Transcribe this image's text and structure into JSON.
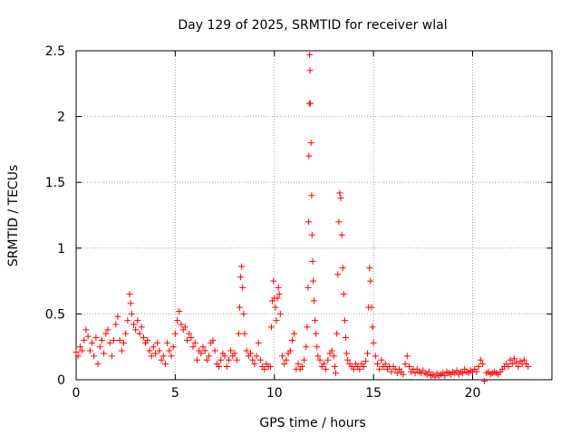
{
  "chart_data": {
    "type": "scatter",
    "title": "Day 129 of 2025, SRMTID for receiver wlal",
    "xlabel": "GPS time / hours",
    "ylabel": "SRMTID / TECUs",
    "xlim": [
      0,
      24
    ],
    "ylim": [
      0,
      2.5
    ],
    "x_ticks": [
      0,
      5,
      10,
      15,
      20
    ],
    "x_tick_labels": [
      "0",
      "5",
      "10",
      "15",
      "20"
    ],
    "y_ticks": [
      0,
      0.5,
      1,
      1.5,
      2,
      2.5
    ],
    "y_tick_labels": [
      "0",
      "0.5",
      "1",
      "1.5",
      "2",
      "2.5"
    ],
    "grid": true,
    "marker": "plus",
    "color": "#ff0000",
    "series": [
      {
        "name": "SRMTID",
        "points": [
          [
            0.0,
            0.21
          ],
          [
            0.1,
            0.18
          ],
          [
            0.2,
            0.25
          ],
          [
            0.3,
            0.22
          ],
          [
            0.4,
            0.3
          ],
          [
            0.5,
            0.38
          ],
          [
            0.6,
            0.33
          ],
          [
            0.7,
            0.22
          ],
          [
            0.8,
            0.28
          ],
          [
            0.9,
            0.18
          ],
          [
            1.0,
            0.32
          ],
          [
            1.1,
            0.12
          ],
          [
            1.2,
            0.25
          ],
          [
            1.3,
            0.3
          ],
          [
            1.4,
            0.2
          ],
          [
            1.5,
            0.35
          ],
          [
            1.6,
            0.38
          ],
          [
            1.7,
            0.28
          ],
          [
            1.8,
            0.18
          ],
          [
            1.9,
            0.3
          ],
          [
            2.0,
            0.42
          ],
          [
            2.1,
            0.48
          ],
          [
            2.2,
            0.3
          ],
          [
            2.3,
            0.22
          ],
          [
            2.4,
            0.28
          ],
          [
            2.5,
            0.35
          ],
          [
            2.6,
            0.45
          ],
          [
            2.7,
            0.65
          ],
          [
            2.75,
            0.58
          ],
          [
            2.8,
            0.5
          ],
          [
            2.9,
            0.42
          ],
          [
            3.0,
            0.38
          ],
          [
            3.1,
            0.45
          ],
          [
            3.2,
            0.35
          ],
          [
            3.3,
            0.4
          ],
          [
            3.4,
            0.32
          ],
          [
            3.5,
            0.28
          ],
          [
            3.6,
            0.3
          ],
          [
            3.7,
            0.22
          ],
          [
            3.8,
            0.18
          ],
          [
            3.9,
            0.25
          ],
          [
            4.0,
            0.2
          ],
          [
            4.1,
            0.28
          ],
          [
            4.2,
            0.22
          ],
          [
            4.3,
            0.15
          ],
          [
            4.4,
            0.18
          ],
          [
            4.5,
            0.12
          ],
          [
            4.6,
            0.28
          ],
          [
            4.7,
            0.22
          ],
          [
            4.8,
            0.18
          ],
          [
            4.9,
            0.25
          ],
          [
            5.0,
            0.35
          ],
          [
            5.1,
            0.45
          ],
          [
            5.2,
            0.52
          ],
          [
            5.3,
            0.42
          ],
          [
            5.4,
            0.38
          ],
          [
            5.5,
            0.4
          ],
          [
            5.6,
            0.3
          ],
          [
            5.7,
            0.35
          ],
          [
            5.8,
            0.32
          ],
          [
            5.9,
            0.25
          ],
          [
            6.0,
            0.28
          ],
          [
            6.1,
            0.15
          ],
          [
            6.2,
            0.22
          ],
          [
            6.3,
            0.2
          ],
          [
            6.4,
            0.25
          ],
          [
            6.5,
            0.22
          ],
          [
            6.6,
            0.15
          ],
          [
            6.7,
            0.18
          ],
          [
            6.8,
            0.28
          ],
          [
            6.9,
            0.3
          ],
          [
            7.0,
            0.22
          ],
          [
            7.1,
            0.12
          ],
          [
            7.2,
            0.1
          ],
          [
            7.3,
            0.15
          ],
          [
            7.4,
            0.2
          ],
          [
            7.5,
            0.18
          ],
          [
            7.6,
            0.1
          ],
          [
            7.7,
            0.15
          ],
          [
            7.8,
            0.22
          ],
          [
            7.9,
            0.18
          ],
          [
            8.0,
            0.2
          ],
          [
            8.1,
            0.15
          ],
          [
            8.2,
            0.35
          ],
          [
            8.25,
            0.55
          ],
          [
            8.3,
            0.78
          ],
          [
            8.35,
            0.86
          ],
          [
            8.4,
            0.7
          ],
          [
            8.45,
            0.5
          ],
          [
            8.5,
            0.35
          ],
          [
            8.6,
            0.22
          ],
          [
            8.7,
            0.18
          ],
          [
            8.8,
            0.2
          ],
          [
            8.9,
            0.15
          ],
          [
            9.0,
            0.12
          ],
          [
            9.1,
            0.18
          ],
          [
            9.2,
            0.28
          ],
          [
            9.3,
            0.15
          ],
          [
            9.4,
            0.1
          ],
          [
            9.5,
            0.08
          ],
          [
            9.6,
            0.12
          ],
          [
            9.7,
            0.1
          ],
          [
            9.8,
            0.1
          ],
          [
            9.85,
            0.4
          ],
          [
            9.9,
            0.6
          ],
          [
            9.95,
            0.75
          ],
          [
            10.0,
            0.62
          ],
          [
            10.05,
            0.55
          ],
          [
            10.1,
            0.45
          ],
          [
            10.15,
            0.62
          ],
          [
            10.2,
            0.7
          ],
          [
            10.25,
            0.65
          ],
          [
            10.3,
            0.5
          ],
          [
            10.4,
            0.18
          ],
          [
            10.5,
            0.12
          ],
          [
            10.6,
            0.15
          ],
          [
            10.7,
            0.2
          ],
          [
            10.8,
            0.22
          ],
          [
            10.9,
            0.3
          ],
          [
            11.0,
            0.35
          ],
          [
            11.1,
            0.08
          ],
          [
            11.2,
            0.12
          ],
          [
            11.3,
            0.08
          ],
          [
            11.4,
            0.1
          ],
          [
            11.5,
            0.15
          ],
          [
            11.6,
            0.25
          ],
          [
            11.65,
            0.4
          ],
          [
            11.7,
            0.7
          ],
          [
            11.72,
            1.2
          ],
          [
            11.74,
            1.7
          ],
          [
            11.76,
            2.1
          ],
          [
            11.78,
            2.47
          ],
          [
            11.8,
            2.35
          ],
          [
            11.82,
            2.1
          ],
          [
            11.85,
            1.8
          ],
          [
            11.88,
            1.4
          ],
          [
            11.9,
            1.1
          ],
          [
            11.93,
            0.9
          ],
          [
            11.96,
            0.75
          ],
          [
            12.0,
            0.6
          ],
          [
            12.05,
            0.45
          ],
          [
            12.1,
            0.35
          ],
          [
            12.15,
            0.25
          ],
          [
            12.2,
            0.18
          ],
          [
            12.3,
            0.15
          ],
          [
            12.4,
            0.1
          ],
          [
            12.5,
            0.12
          ],
          [
            12.6,
            0.08
          ],
          [
            12.7,
            0.15
          ],
          [
            12.8,
            0.2
          ],
          [
            12.9,
            0.22
          ],
          [
            13.0,
            0.18
          ],
          [
            13.05,
            0.1
          ],
          [
            13.1,
            0.05
          ],
          [
            13.15,
            0.35
          ],
          [
            13.2,
            0.8
          ],
          [
            13.25,
            1.2
          ],
          [
            13.3,
            1.42
          ],
          [
            13.35,
            1.38
          ],
          [
            13.4,
            1.1
          ],
          [
            13.45,
            0.85
          ],
          [
            13.5,
            0.65
          ],
          [
            13.55,
            0.45
          ],
          [
            13.6,
            0.32
          ],
          [
            13.65,
            0.2
          ],
          [
            13.7,
            0.15
          ],
          [
            13.8,
            0.12
          ],
          [
            13.9,
            0.1
          ],
          [
            14.0,
            0.08
          ],
          [
            14.1,
            0.12
          ],
          [
            14.2,
            0.1
          ],
          [
            14.3,
            0.08
          ],
          [
            14.4,
            0.12
          ],
          [
            14.5,
            0.1
          ],
          [
            14.6,
            0.14
          ],
          [
            14.7,
            0.2
          ],
          [
            14.75,
            0.55
          ],
          [
            14.8,
            0.85
          ],
          [
            14.85,
            0.75
          ],
          [
            14.9,
            0.55
          ],
          [
            14.95,
            0.4
          ],
          [
            15.0,
            0.28
          ],
          [
            15.1,
            0.18
          ],
          [
            15.2,
            0.12
          ],
          [
            15.3,
            0.08
          ],
          [
            15.4,
            0.15
          ],
          [
            15.5,
            0.1
          ],
          [
            15.6,
            0.12
          ],
          [
            15.7,
            0.08
          ],
          [
            15.8,
            0.1
          ],
          [
            15.9,
            0.06
          ],
          [
            16.0,
            0.1
          ],
          [
            16.1,
            0.08
          ],
          [
            16.2,
            0.05
          ],
          [
            16.3,
            0.08
          ],
          [
            16.4,
            0.06
          ],
          [
            16.5,
            0.04
          ],
          [
            16.6,
            0.12
          ],
          [
            16.7,
            0.18
          ],
          [
            16.8,
            0.1
          ],
          [
            16.9,
            0.06
          ],
          [
            17.0,
            0.08
          ],
          [
            17.1,
            0.05
          ],
          [
            17.2,
            0.08
          ],
          [
            17.3,
            0.06
          ],
          [
            17.4,
            0.05
          ],
          [
            17.5,
            0.07
          ],
          [
            17.6,
            0.05
          ],
          [
            17.7,
            0.04
          ],
          [
            17.8,
            0.06
          ],
          [
            17.9,
            0.03
          ],
          [
            18.0,
            0.04
          ],
          [
            18.1,
            0.02
          ],
          [
            18.2,
            0.05
          ],
          [
            18.3,
            0.03
          ],
          [
            18.4,
            0.04
          ],
          [
            18.5,
            0.05
          ],
          [
            18.6,
            0.03
          ],
          [
            18.7,
            0.06
          ],
          [
            18.8,
            0.05
          ],
          [
            18.9,
            0.04
          ],
          [
            19.0,
            0.06
          ],
          [
            19.1,
            0.05
          ],
          [
            19.2,
            0.07
          ],
          [
            19.3,
            0.04
          ],
          [
            19.4,
            0.06
          ],
          [
            19.5,
            0.05
          ],
          [
            19.6,
            0.08
          ],
          [
            19.7,
            0.06
          ],
          [
            19.8,
            0.05
          ],
          [
            19.9,
            0.07
          ],
          [
            20.0,
            0.06
          ],
          [
            20.1,
            0.08
          ],
          [
            20.2,
            0.06
          ],
          [
            20.3,
            0.1
          ],
          [
            20.4,
            0.15
          ],
          [
            20.5,
            0.12
          ],
          [
            20.6,
            -0.01
          ],
          [
            20.7,
            0.05
          ],
          [
            20.8,
            0.06
          ],
          [
            20.9,
            0.04
          ],
          [
            21.0,
            0.05
          ],
          [
            21.1,
            0.06
          ],
          [
            21.2,
            0.05
          ],
          [
            21.3,
            0.04
          ],
          [
            21.4,
            0.06
          ],
          [
            21.5,
            0.08
          ],
          [
            21.6,
            0.1
          ],
          [
            21.7,
            0.12
          ],
          [
            21.8,
            0.1
          ],
          [
            21.9,
            0.15
          ],
          [
            22.0,
            0.12
          ],
          [
            22.1,
            0.16
          ],
          [
            22.2,
            0.13
          ],
          [
            22.3,
            0.1
          ],
          [
            22.4,
            0.14
          ],
          [
            22.5,
            0.12
          ],
          [
            22.6,
            0.15
          ],
          [
            22.7,
            0.12
          ],
          [
            22.8,
            0.1
          ]
        ]
      }
    ]
  }
}
